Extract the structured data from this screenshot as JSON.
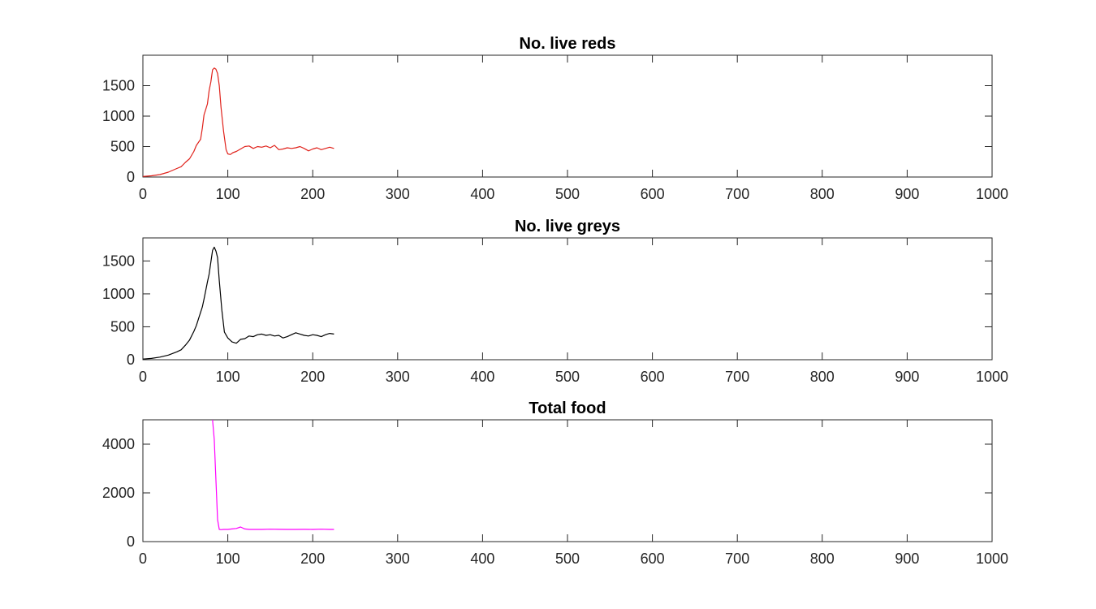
{
  "chart_data": [
    {
      "type": "line",
      "title": "No. live reds",
      "xlabel": "",
      "ylabel": "",
      "xlim": [
        0,
        1000
      ],
      "ylim": [
        0,
        2000
      ],
      "xticks": [
        0,
        100,
        200,
        300,
        400,
        500,
        600,
        700,
        800,
        900,
        1000
      ],
      "yticks": [
        0,
        500,
        1000,
        1500
      ],
      "xtick_labels": [
        "0",
        "100",
        "200",
        "300",
        "400",
        "500",
        "600",
        "700",
        "800",
        "900",
        "1000"
      ],
      "ytick_labels": [
        "0",
        "500",
        "1000",
        "1500"
      ],
      "grid": false,
      "series": [
        {
          "color": "#e0221b",
          "x": [
            0,
            10,
            20,
            30,
            40,
            45,
            50,
            55,
            60,
            63,
            65,
            68,
            70,
            72,
            74,
            76,
            78,
            80,
            82,
            84,
            86,
            88,
            90,
            92,
            95,
            98,
            100,
            103,
            106,
            110,
            115,
            120,
            125,
            130,
            135,
            140,
            145,
            150,
            155,
            160,
            165,
            170,
            175,
            180,
            185,
            190,
            195,
            200,
            205,
            210,
            215,
            220,
            225
          ],
          "values": [
            10,
            20,
            40,
            80,
            140,
            170,
            240,
            300,
            420,
            520,
            560,
            620,
            800,
            1020,
            1110,
            1200,
            1420,
            1560,
            1760,
            1790,
            1770,
            1700,
            1500,
            1150,
            750,
            450,
            380,
            370,
            400,
            420,
            460,
            500,
            510,
            470,
            500,
            490,
            510,
            480,
            520,
            450,
            460,
            480,
            470,
            480,
            500,
            470,
            430,
            460,
            480,
            450,
            470,
            490,
            470
          ]
        }
      ]
    },
    {
      "type": "line",
      "title": "No. live greys",
      "xlabel": "",
      "ylabel": "",
      "xlim": [
        0,
        1000
      ],
      "ylim": [
        0,
        1850
      ],
      "xticks": [
        0,
        100,
        200,
        300,
        400,
        500,
        600,
        700,
        800,
        900,
        1000
      ],
      "yticks": [
        0,
        500,
        1000,
        1500
      ],
      "xtick_labels": [
        "0",
        "100",
        "200",
        "300",
        "400",
        "500",
        "600",
        "700",
        "800",
        "900",
        "1000"
      ],
      "ytick_labels": [
        "0",
        "500",
        "1000",
        "1500"
      ],
      "grid": false,
      "series": [
        {
          "color": "#000000",
          "x": [
            0,
            10,
            20,
            30,
            40,
            45,
            50,
            55,
            60,
            63,
            66,
            70,
            72,
            74,
            76,
            78,
            80,
            82,
            84,
            86,
            88,
            90,
            93,
            96,
            100,
            105,
            110,
            115,
            120,
            125,
            130,
            135,
            140,
            145,
            150,
            155,
            160,
            165,
            170,
            175,
            180,
            185,
            190,
            195,
            200,
            205,
            210,
            215,
            220,
            225
          ],
          "values": [
            10,
            20,
            40,
            70,
            120,
            150,
            220,
            300,
            430,
            520,
            640,
            800,
            920,
            1050,
            1180,
            1300,
            1480,
            1660,
            1710,
            1650,
            1550,
            1200,
            750,
            420,
            330,
            270,
            250,
            310,
            320,
            360,
            350,
            380,
            390,
            370,
            380,
            360,
            370,
            330,
            350,
            380,
            410,
            390,
            370,
            360,
            380,
            370,
            350,
            380,
            400,
            390
          ]
        }
      ]
    },
    {
      "type": "line",
      "title": "Total food",
      "xlabel": "",
      "ylabel": "",
      "xlim": [
        0,
        1000
      ],
      "ylim": [
        0,
        5000
      ],
      "xticks": [
        0,
        100,
        200,
        300,
        400,
        500,
        600,
        700,
        800,
        900,
        1000
      ],
      "yticks": [
        0,
        2000,
        4000
      ],
      "xtick_labels": [
        "0",
        "100",
        "200",
        "300",
        "400",
        "500",
        "600",
        "700",
        "800",
        "900",
        "1000"
      ],
      "ytick_labels": [
        "0",
        "2000",
        "4000"
      ],
      "grid": false,
      "series": [
        {
          "color": "#ff00ff",
          "x": [
            82,
            84,
            86,
            88,
            90,
            92,
            95,
            100,
            105,
            110,
            115,
            120,
            125,
            130,
            140,
            150,
            160,
            170,
            180,
            190,
            200,
            210,
            220,
            225
          ],
          "values": [
            5000,
            4200,
            2500,
            900,
            500,
            490,
            500,
            500,
            520,
            540,
            600,
            520,
            500,
            500,
            500,
            510,
            505,
            500,
            500,
            505,
            500,
            510,
            500,
            500
          ]
        }
      ]
    }
  ]
}
